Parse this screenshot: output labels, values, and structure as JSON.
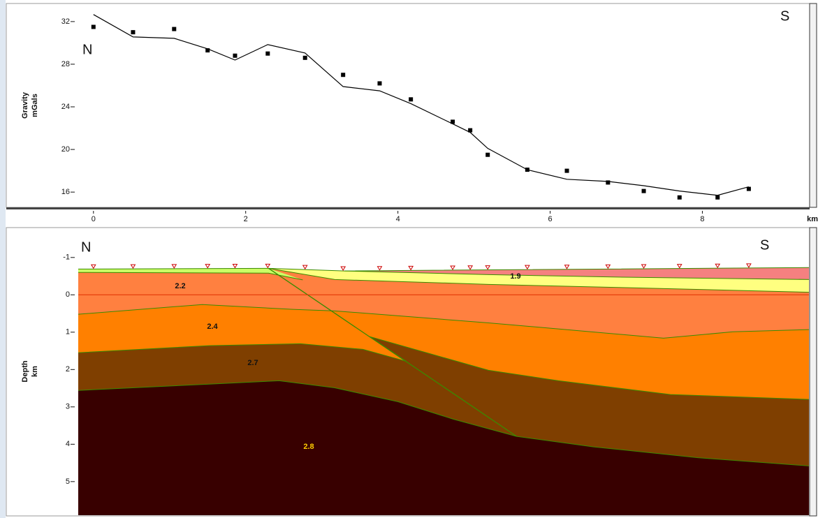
{
  "chart_data": [
    {
      "type": "scatter",
      "ylabel": [
        "Gravity",
        "mGals"
      ],
      "annotations": [
        "N",
        "S"
      ],
      "xlim": [
        -0.2,
        9.4
      ],
      "ylim": [
        14.7,
        33.5
      ],
      "yticks": [
        16,
        20,
        24,
        28,
        32
      ],
      "x": [
        0,
        0.52,
        1.06,
        1.5,
        1.86,
        2.29,
        2.78,
        3.28,
        3.76,
        4.17,
        4.72,
        4.95,
        5.18,
        5.7,
        6.22,
        6.76,
        7.23,
        7.7,
        8.2,
        8.61
      ],
      "series": [
        {
          "style": "points",
          "color": "#000000",
          "values": [
            31.5,
            31.0,
            31.3,
            29.3,
            28.8,
            29.0,
            28.6,
            27.0,
            26.2,
            24.7,
            22.6,
            21.8,
            19.5,
            18.1,
            18.0,
            16.9,
            16.1,
            15.5,
            15.5,
            16.3
          ]
        },
        {
          "style": "line",
          "color": "#000000",
          "values": [
            32.66,
            30.56,
            30.43,
            29.44,
            28.39,
            29.84,
            29.05,
            25.9,
            25.5,
            24.3,
            22.4,
            21.6,
            20.1,
            18.1,
            17.2,
            17.0,
            16.6,
            16.1,
            15.7,
            16.5
          ]
        }
      ]
    },
    {
      "type": "cross-section",
      "ylabel": [
        "Depth",
        "km"
      ],
      "xlabel": "km",
      "annotations": [
        "N",
        "S"
      ],
      "xlim": [
        -0.2,
        9.4
      ],
      "ylim": [
        -1.8,
        5.9
      ],
      "xticks": [
        0,
        2,
        4,
        6,
        8
      ],
      "yticks": [
        -1,
        0,
        1,
        2,
        3,
        4,
        5
      ],
      "zero_line_color": "#e03000",
      "boundary_color": "#3a8a00",
      "station_color": "#cc0000",
      "surface": {
        "x": [
          -0.2,
          2.3,
          3.3,
          9.4
        ],
        "depth": [
          -0.69,
          -0.71,
          -0.64,
          -0.73
        ]
      },
      "fault": {
        "x": [
          2.3,
          5.56
        ],
        "depth": [
          -0.71,
          3.79
        ]
      },
      "bodies": [
        {
          "density": 2.8,
          "color": "#380000",
          "label_color": "#ffcc00"
        },
        {
          "density": 2.7,
          "color": "#7f3f00",
          "label_color": "#111111",
          "base_x": [
            -0.2,
            1.52,
            2.44,
            3.17,
            4.0,
            4.73,
            5.56,
            6.57,
            7.94,
            9.4
          ],
          "base_depth": [
            2.56,
            2.39,
            2.3,
            2.49,
            2.86,
            3.33,
            3.79,
            4.07,
            4.36,
            4.58
          ]
        },
        {
          "density": 2.4,
          "color": "#ff8000",
          "label_color": "#111111",
          "base_x": [
            -0.2,
            1.52,
            2.72,
            3.54,
            4.11,
            3.63,
            5.19,
            6.11,
            7.58,
            9.4
          ],
          "base_depth": [
            1.55,
            1.36,
            1.31,
            1.46,
            1.78,
            1.12,
            2.02,
            2.3,
            2.67,
            2.8
          ]
        },
        {
          "density": 2.2,
          "color": "#ff8040",
          "label_color": "#111111",
          "base_x": [
            -0.2,
            1.43,
            2.62,
            3.17,
            5.19,
            7.49,
            8.4,
            9.4
          ],
          "base_depth": [
            0.52,
            0.26,
            0.39,
            0.43,
            0.75,
            1.16,
            0.99,
            0.93
          ]
        },
        {
          "color": "#ffff80",
          "base_x": [
            2.3,
            3.17,
            5.19,
            7.03,
            9.4
          ],
          "base_depth": [
            -0.71,
            -0.41,
            -0.28,
            -0.19,
            -0.07
          ]
        },
        {
          "density": 1.9,
          "color": "#f58080",
          "label_color": "#111111",
          "base_x": [
            3.3,
            5.19,
            7.03,
            9.4
          ],
          "base_depth": [
            -0.64,
            -0.54,
            -0.47,
            -0.41
          ]
        },
        {
          "color": "#ccff66",
          "base_x": [
            -0.2,
            2.3,
            2.75
          ],
          "base_depth": [
            -0.6,
            -0.58,
            -0.4
          ]
        }
      ]
    }
  ]
}
